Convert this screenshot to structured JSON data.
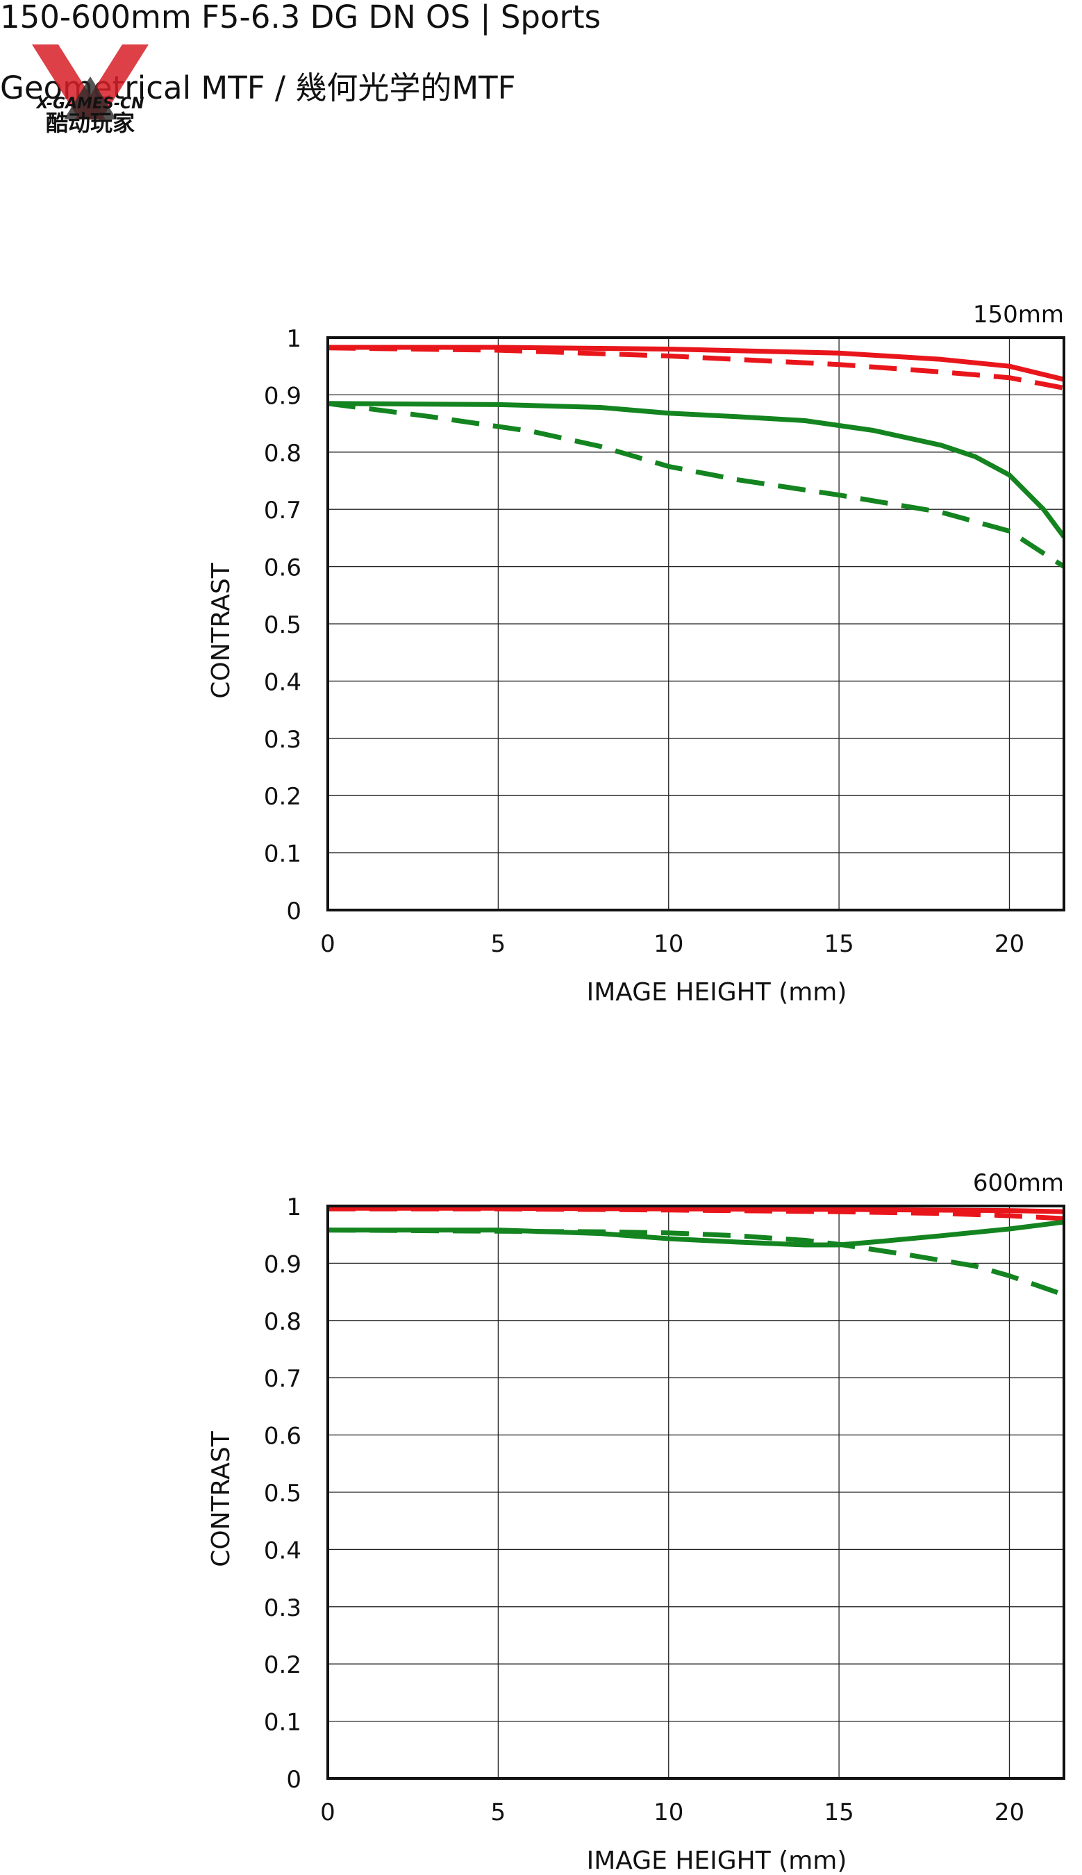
{
  "header": {
    "title": "150-600mm F5-6.3 DG DN OS | Sports",
    "subtitle": "Geometrical MTF / 幾何光学的MTF"
  },
  "watermark": {
    "line1": "X-GAMES-CN",
    "line2": "酷动玩家"
  },
  "chart_data": [
    {
      "type": "line",
      "focal_label": "150mm",
      "xlabel": "IMAGE HEIGHT (mm)",
      "ylabel": "CONTRAST",
      "xlim": [
        0,
        21.6
      ],
      "ylim": [
        0,
        1
      ],
      "xticks": [
        0,
        5,
        10,
        15,
        20
      ],
      "yticks": [
        0,
        0.1,
        0.2,
        0.3,
        0.4,
        0.5,
        0.6,
        0.7,
        0.8,
        0.9,
        1
      ],
      "grid": true,
      "series": [
        {
          "color": "#e8161b",
          "style": "solid",
          "x": [
            0,
            5,
            10,
            15,
            18,
            20,
            21.6
          ],
          "y": [
            0.983,
            0.983,
            0.98,
            0.973,
            0.962,
            0.95,
            0.927
          ]
        },
        {
          "color": "#e8161b",
          "style": "dashed",
          "x": [
            0,
            5,
            10,
            15,
            18,
            20,
            21.6
          ],
          "y": [
            0.982,
            0.978,
            0.968,
            0.953,
            0.94,
            0.93,
            0.912
          ]
        },
        {
          "color": "#13841f",
          "style": "solid",
          "x": [
            0,
            5,
            8,
            10,
            12,
            14,
            16,
            18,
            19,
            20,
            21,
            21.6
          ],
          "y": [
            0.885,
            0.883,
            0.878,
            0.868,
            0.862,
            0.855,
            0.838,
            0.812,
            0.792,
            0.76,
            0.7,
            0.652
          ]
        },
        {
          "color": "#13841f",
          "style": "dashed",
          "x": [
            0,
            3,
            6,
            8,
            10,
            12,
            15,
            18,
            20,
            21.6
          ],
          "y": [
            0.885,
            0.862,
            0.836,
            0.81,
            0.775,
            0.752,
            0.725,
            0.695,
            0.662,
            0.6
          ]
        }
      ]
    },
    {
      "type": "line",
      "focal_label": "600mm",
      "xlabel": "IMAGE HEIGHT (mm)",
      "ylabel": "CONTRAST",
      "xlim": [
        0,
        21.6
      ],
      "ylim": [
        0,
        1
      ],
      "xticks": [
        0,
        5,
        10,
        15,
        20
      ],
      "yticks": [
        0,
        0.1,
        0.2,
        0.3,
        0.4,
        0.5,
        0.6,
        0.7,
        0.8,
        0.9,
        1
      ],
      "grid": true,
      "series": [
        {
          "color": "#e8161b",
          "style": "solid",
          "x": [
            0,
            5,
            10,
            15,
            20,
            21.6
          ],
          "y": [
            0.996,
            0.996,
            0.995,
            0.994,
            0.992,
            0.99
          ]
        },
        {
          "color": "#e8161b",
          "style": "dashed",
          "x": [
            0,
            5,
            10,
            15,
            18,
            20,
            21.6
          ],
          "y": [
            0.995,
            0.995,
            0.993,
            0.99,
            0.987,
            0.983,
            0.978
          ]
        },
        {
          "color": "#13841f",
          "style": "solid",
          "x": [
            0,
            5,
            8,
            10,
            12,
            14,
            15,
            16,
            18,
            20,
            21.6
          ],
          "y": [
            0.958,
            0.958,
            0.952,
            0.943,
            0.937,
            0.932,
            0.932,
            0.937,
            0.948,
            0.96,
            0.972
          ]
        },
        {
          "color": "#13841f",
          "style": "dashed",
          "x": [
            0,
            5,
            8,
            10,
            12,
            14,
            15,
            17,
            19,
            20,
            21.6
          ],
          "y": [
            0.958,
            0.956,
            0.955,
            0.953,
            0.948,
            0.94,
            0.933,
            0.915,
            0.895,
            0.878,
            0.845
          ]
        }
      ]
    }
  ]
}
